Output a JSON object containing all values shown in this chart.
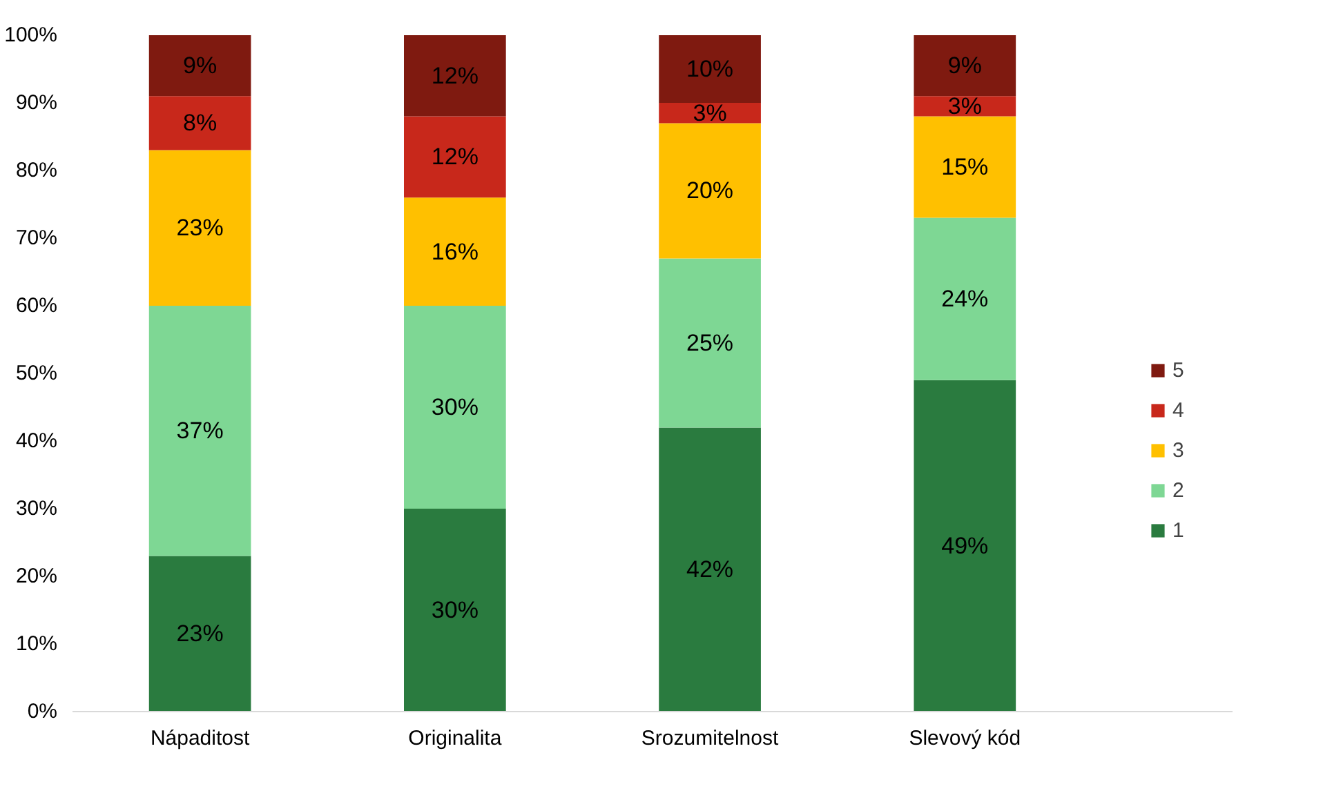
{
  "chart_data": {
    "type": "bar",
    "stacked": true,
    "categories": [
      "Nápaditost",
      "Originalita",
      "Srozumitelnost",
      "Slevový kód"
    ],
    "series": [
      {
        "name": "1",
        "color": "#2a7b3f",
        "values": [
          23,
          30,
          42,
          49
        ],
        "value_labels": [
          "23%",
          "30%",
          "42%",
          "49%"
        ]
      },
      {
        "name": "2",
        "color": "#7ed794",
        "values": [
          37,
          30,
          25,
          24
        ],
        "value_labels": [
          "37%",
          "30%",
          "25%",
          "24%"
        ]
      },
      {
        "name": "3",
        "color": "#ffc000",
        "values": [
          23,
          16,
          20,
          15
        ],
        "value_labels": [
          "23%",
          "16%",
          "20%",
          "15%"
        ]
      },
      {
        "name": "4",
        "color": "#c8281b",
        "values": [
          8,
          12,
          3,
          3
        ],
        "value_labels": [
          "8%",
          "12%",
          "3%",
          "3%"
        ]
      },
      {
        "name": "5",
        "color": "#7f1a10",
        "values": [
          9,
          12,
          10,
          9
        ],
        "value_labels": [
          "9%",
          "12%",
          "10%",
          "9%"
        ]
      }
    ],
    "ylim": [
      0,
      100
    ],
    "yticks": [
      {
        "value": 0,
        "label": "0%"
      },
      {
        "value": 10,
        "label": "10%"
      },
      {
        "value": 20,
        "label": "20%"
      },
      {
        "value": 30,
        "label": "30%"
      },
      {
        "value": 40,
        "label": "40%"
      },
      {
        "value": 50,
        "label": "50%"
      },
      {
        "value": 60,
        "label": "60%"
      },
      {
        "value": 70,
        "label": "70%"
      },
      {
        "value": 80,
        "label": "80%"
      },
      {
        "value": 90,
        "label": "90%"
      },
      {
        "value": 100,
        "label": "100%"
      }
    ],
    "grid": false,
    "legend": "right"
  }
}
